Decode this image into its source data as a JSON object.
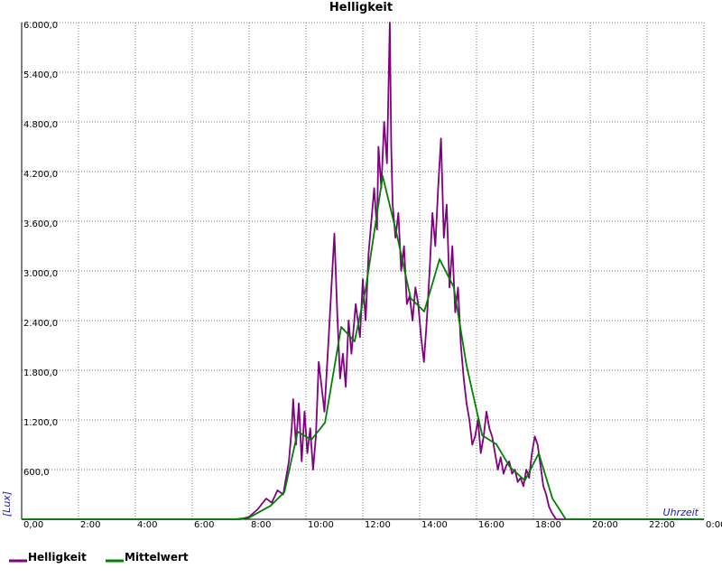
{
  "chart_data": {
    "type": "line",
    "title": "Helligkeit",
    "x_label": "Uhrzeit",
    "y_label": "[Lux]",
    "xlim": [
      0,
      24
    ],
    "ylim": [
      0,
      6000
    ],
    "grid": true,
    "xticks": [
      {
        "value": 0,
        "label": "0,00"
      },
      {
        "value": 2,
        "label": "2:00"
      },
      {
        "value": 4,
        "label": "4:00"
      },
      {
        "value": 6,
        "label": "6:00"
      },
      {
        "value": 8,
        "label": "8:00"
      },
      {
        "value": 10,
        "label": "10:00"
      },
      {
        "value": 12,
        "label": "12:00"
      },
      {
        "value": 14,
        "label": "14:00"
      },
      {
        "value": 16,
        "label": "16:00"
      },
      {
        "value": 18,
        "label": "18:00"
      },
      {
        "value": 20,
        "label": "20:00"
      },
      {
        "value": 22,
        "label": "22:00"
      },
      {
        "value": 24,
        "label": "0:00"
      }
    ],
    "yticks": [
      {
        "value": 600,
        "label": "600,0"
      },
      {
        "value": 1200,
        "label": "1.200,0"
      },
      {
        "value": 1800,
        "label": "1.800,0"
      },
      {
        "value": 2400,
        "label": "2.400,0"
      },
      {
        "value": 3000,
        "label": "3.000,0"
      },
      {
        "value": 3600,
        "label": "3.600,0"
      },
      {
        "value": 4200,
        "label": "4.200,0"
      },
      {
        "value": 4800,
        "label": "4.800,0"
      },
      {
        "value": 5400,
        "label": "5.400,0"
      },
      {
        "value": 6000,
        "label": "6.000,0"
      }
    ],
    "series": [
      {
        "name": "Helligkeit",
        "color": "#800080",
        "x": [
          0,
          7.7,
          8.0,
          8.3,
          8.6,
          8.8,
          9.0,
          9.2,
          9.3,
          9.4,
          9.5,
          9.55,
          9.65,
          9.75,
          9.85,
          9.95,
          10.05,
          10.15,
          10.25,
          10.35,
          10.45,
          10.55,
          10.65,
          10.8,
          11.0,
          11.1,
          11.2,
          11.3,
          11.4,
          11.5,
          11.6,
          11.75,
          11.9,
          12.0,
          12.1,
          12.2,
          12.3,
          12.4,
          12.5,
          12.55,
          12.65,
          12.75,
          12.85,
          12.95,
          13.0,
          13.05,
          13.15,
          13.25,
          13.35,
          13.45,
          13.55,
          13.65,
          13.75,
          13.85,
          13.95,
          14.05,
          14.15,
          14.25,
          14.35,
          14.45,
          14.55,
          14.65,
          14.75,
          14.85,
          14.95,
          15.05,
          15.15,
          15.25,
          15.35,
          15.45,
          15.55,
          15.65,
          15.75,
          15.85,
          15.95,
          16.05,
          16.15,
          16.25,
          16.35,
          16.45,
          16.55,
          16.65,
          16.75,
          16.85,
          16.95,
          17.05,
          17.15,
          17.25,
          17.35,
          17.45,
          17.55,
          17.65,
          17.75,
          17.85,
          17.95,
          18.05,
          18.15,
          18.25,
          18.35,
          18.45,
          18.55,
          18.65,
          18.8,
          24
        ],
        "values": [
          0,
          0,
          30,
          120,
          250,
          200,
          350,
          300,
          500,
          700,
          1100,
          1450,
          900,
          1400,
          700,
          1300,
          800,
          1100,
          600,
          1000,
          1900,
          1600,
          1300,
          2200,
          3450,
          2500,
          1700,
          2000,
          1600,
          2400,
          2000,
          2600,
          2200,
          2900,
          2400,
          3200,
          3600,
          4000,
          3500,
          4500,
          4000,
          4800,
          4300,
          6000,
          4500,
          3800,
          3400,
          3700,
          3000,
          3300,
          2600,
          2700,
          2400,
          2800,
          2600,
          2200,
          1900,
          2400,
          3000,
          3700,
          3300,
          4000,
          4600,
          3400,
          3800,
          2800,
          3300,
          2500,
          2800,
          2100,
          1700,
          1400,
          1200,
          900,
          1000,
          1200,
          800,
          1000,
          1300,
          1100,
          1000,
          800,
          600,
          750,
          550,
          650,
          700,
          550,
          600,
          450,
          500,
          400,
          600,
          500,
          800,
          1000,
          900,
          650,
          400,
          300,
          150,
          80,
          0,
          0
        ]
      },
      {
        "name": "Mittelwert",
        "color": "#008000",
        "x": [
          0,
          7.5,
          8.0,
          8.76,
          9.24,
          9.71,
          10.19,
          10.67,
          11.24,
          11.71,
          12.1,
          12.7,
          13.2,
          13.68,
          14.16,
          14.7,
          15.2,
          15.65,
          16.2,
          16.7,
          17.17,
          17.7,
          18.19,
          18.67,
          19.14,
          24
        ],
        "values": [
          0,
          0,
          20,
          164,
          327,
          1058,
          960,
          1167,
          2324,
          2149,
          2782,
          4145,
          3436,
          2673,
          2509,
          3142,
          2804,
          1855,
          1015,
          905,
          633,
          469,
          796,
          251,
          0,
          0
        ]
      }
    ]
  }
}
